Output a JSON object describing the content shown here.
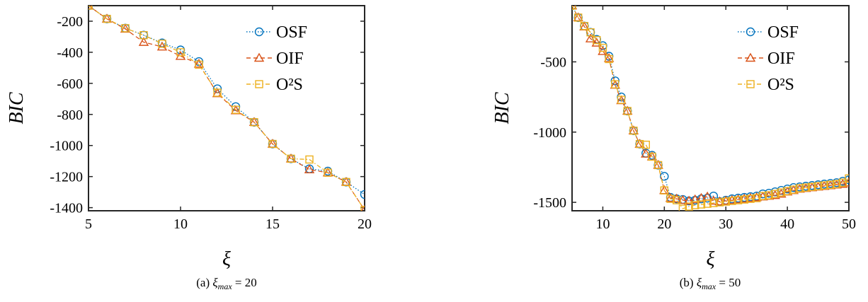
{
  "chart_data": [
    {
      "type": "line",
      "caption_prefix": "(a) ",
      "caption_suffix": " = 20",
      "xlabel": "ξ",
      "ylabel": "BIC",
      "xlim": [
        5,
        20
      ],
      "ylim": [
        -1420,
        -100
      ],
      "xticks": [
        5,
        10,
        15,
        20
      ],
      "yticks": [
        -200,
        -400,
        -600,
        -800,
        -1000,
        -1200,
        -1400
      ],
      "legend": "top-right",
      "grid": false,
      "series": [
        {
          "name": "OSF",
          "color": "#0072BD",
          "marker": "circle",
          "dash": "dotted",
          "x": [
            5,
            6,
            7,
            8,
            9,
            10,
            11,
            12,
            13,
            14,
            15,
            16,
            17,
            18,
            19,
            20
          ],
          "y": [
            -100,
            -185,
            -245,
            -290,
            -340,
            -385,
            -460,
            -635,
            -750,
            -850,
            -990,
            -1085,
            -1150,
            -1165,
            -1235,
            -1315
          ]
        },
        {
          "name": "OIF",
          "color": "#D95319",
          "marker": "triangle",
          "dash": "dashed",
          "x": [
            5,
            6,
            7,
            8,
            9,
            10,
            11,
            12,
            13,
            14,
            15,
            16,
            17,
            18,
            19,
            20
          ],
          "y": [
            -100,
            -185,
            -250,
            -335,
            -365,
            -425,
            -475,
            -665,
            -775,
            -850,
            -990,
            -1085,
            -1155,
            -1175,
            -1235,
            -1415
          ]
        },
        {
          "name": "O²S",
          "color": "#EDB120",
          "marker": "square",
          "dash": "dashdot",
          "x": [
            5,
            6,
            7,
            8,
            9,
            10,
            11,
            12,
            13,
            14,
            15,
            16,
            17,
            18,
            19,
            20
          ],
          "y": [
            -100,
            -185,
            -245,
            -290,
            -345,
            -400,
            -480,
            -660,
            -770,
            -850,
            -990,
            -1085,
            -1090,
            -1175,
            -1235,
            -1415
          ]
        }
      ]
    },
    {
      "type": "line",
      "caption_prefix": "(b) ",
      "caption_suffix": " = 50",
      "xlabel": "ξ",
      "ylabel": "BIC",
      "xlim": [
        5,
        50
      ],
      "ylim": [
        -1560,
        -100
      ],
      "xticks": [
        10,
        20,
        30,
        40,
        50
      ],
      "yticks": [
        -500,
        -1000,
        -1500
      ],
      "legend": "top-right",
      "grid": false,
      "series": [
        {
          "name": "OSF",
          "color": "#0072BD",
          "marker": "circle",
          "dash": "dotted",
          "x": [
            5,
            6,
            7,
            8,
            9,
            10,
            11,
            12,
            13,
            14,
            15,
            16,
            17,
            18,
            19,
            20,
            21,
            22,
            23,
            24,
            25,
            26,
            27,
            28,
            29,
            30,
            31,
            32,
            33,
            34,
            35,
            36,
            37,
            38,
            39,
            40,
            41,
            42,
            43,
            44,
            45,
            46,
            47,
            48,
            49,
            50
          ],
          "y": [
            -100,
            -185,
            -245,
            -290,
            -340,
            -385,
            -460,
            -635,
            -750,
            -850,
            -990,
            -1085,
            -1150,
            -1165,
            -1235,
            -1315,
            -1465,
            -1475,
            -1480,
            -1490,
            -1485,
            -1475,
            -1470,
            -1455,
            -1495,
            -1485,
            -1475,
            -1470,
            -1465,
            -1460,
            -1455,
            -1440,
            -1435,
            -1425,
            -1415,
            -1405,
            -1395,
            -1390,
            -1385,
            -1380,
            -1375,
            -1370,
            -1365,
            -1360,
            -1350,
            -1340
          ]
        },
        {
          "name": "OIF",
          "color": "#D95319",
          "marker": "triangle",
          "dash": "dashed",
          "x": [
            5,
            6,
            7,
            8,
            9,
            10,
            11,
            12,
            13,
            14,
            15,
            16,
            17,
            18,
            19,
            20,
            21,
            22,
            23,
            24,
            25,
            26,
            27,
            28,
            29,
            30,
            31,
            32,
            33,
            34,
            35,
            36,
            37,
            38,
            39,
            40,
            41,
            42,
            43,
            44,
            45,
            46,
            47,
            48,
            49,
            50
          ],
          "y": [
            -100,
            -185,
            -250,
            -335,
            -365,
            -425,
            -475,
            -665,
            -775,
            -850,
            -990,
            -1085,
            -1155,
            -1175,
            -1235,
            -1415,
            -1470,
            -1475,
            -1485,
            -1490,
            -1480,
            -1470,
            -1460,
            -1490,
            -1495,
            -1490,
            -1485,
            -1480,
            -1475,
            -1470,
            -1465,
            -1460,
            -1455,
            -1450,
            -1440,
            -1425,
            -1415,
            -1405,
            -1400,
            -1395,
            -1390,
            -1385,
            -1380,
            -1375,
            -1370,
            -1360
          ]
        },
        {
          "name": "O²S",
          "color": "#EDB120",
          "marker": "square",
          "dash": "dashdot",
          "x": [
            5,
            6,
            7,
            8,
            9,
            10,
            11,
            12,
            13,
            14,
            15,
            16,
            17,
            18,
            19,
            20,
            21,
            22,
            23,
            24,
            25,
            26,
            27,
            28,
            29,
            30,
            31,
            32,
            33,
            34,
            35,
            36,
            37,
            38,
            39,
            40,
            41,
            42,
            43,
            44,
            45,
            46,
            47,
            48,
            49,
            50
          ],
          "y": [
            -100,
            -185,
            -245,
            -290,
            -345,
            -400,
            -480,
            -660,
            -770,
            -850,
            -990,
            -1085,
            -1090,
            -1175,
            -1235,
            -1415,
            -1475,
            -1485,
            -1545,
            -1530,
            -1520,
            -1515,
            -1510,
            -1505,
            -1500,
            -1495,
            -1490,
            -1485,
            -1480,
            -1475,
            -1470,
            -1455,
            -1450,
            -1440,
            -1430,
            -1420,
            -1410,
            -1400,
            -1395,
            -1390,
            -1385,
            -1380,
            -1375,
            -1370,
            -1360,
            -1330
          ]
        }
      ]
    }
  ]
}
